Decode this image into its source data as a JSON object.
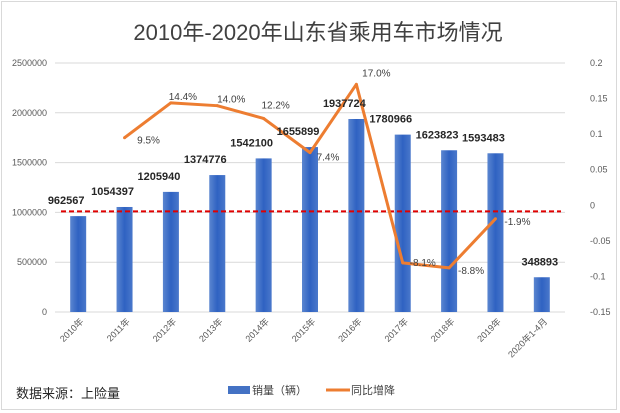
{
  "chart_data": {
    "type": "bar+line",
    "title": "2010年-2020年山东省乘用车市场情况",
    "categories": [
      "2010年",
      "2011年",
      "2012年",
      "2013年",
      "2014年",
      "2015年",
      "2016年",
      "2017年",
      "2018年",
      "2019年",
      "2020年1-4月"
    ],
    "series": [
      {
        "name": "销量（辆）",
        "type": "bar",
        "axis": "left",
        "color": "#4472c4",
        "values": [
          962567,
          1054397,
          1205940,
          1374776,
          1542100,
          1655899,
          1937724,
          1780966,
          1623823,
          1593483,
          348893
        ],
        "labels": [
          "962567",
          "1054397",
          "1205940",
          "1374776",
          "1542100",
          "1655899",
          "1937724",
          "1780966",
          "1623823",
          "1593483",
          "348893"
        ]
      },
      {
        "name": "同比增降",
        "type": "line",
        "axis": "right",
        "color": "#ed7d31",
        "values": [
          null,
          0.095,
          0.144,
          0.14,
          0.122,
          0.074,
          0.17,
          -0.081,
          -0.088,
          -0.019,
          null
        ],
        "labels": [
          "",
          "9.5%",
          "14.4%",
          "14.0%",
          "12.2%",
          "7.4%",
          "17.0%",
          "-8.1%",
          "-8.8%",
          "-1.9%",
          ""
        ]
      }
    ],
    "left_axis": {
      "ylim": [
        0,
        2500000
      ],
      "ticks": [
        "0",
        "500000",
        "1000000",
        "1500000",
        "2000000",
        "2500000"
      ]
    },
    "right_axis": {
      "ylim": [
        -0.15,
        0.2
      ],
      "ticks": [
        "-0.15",
        "-0.1",
        "-0.05",
        "0",
        "0.05",
        "0.1",
        "0.15",
        "0.2"
      ]
    },
    "reference_line": {
      "style": "dashed",
      "color": "#e00000"
    },
    "grid": true,
    "legend_position": "bottom",
    "annotation": "数据来源：上险量"
  }
}
